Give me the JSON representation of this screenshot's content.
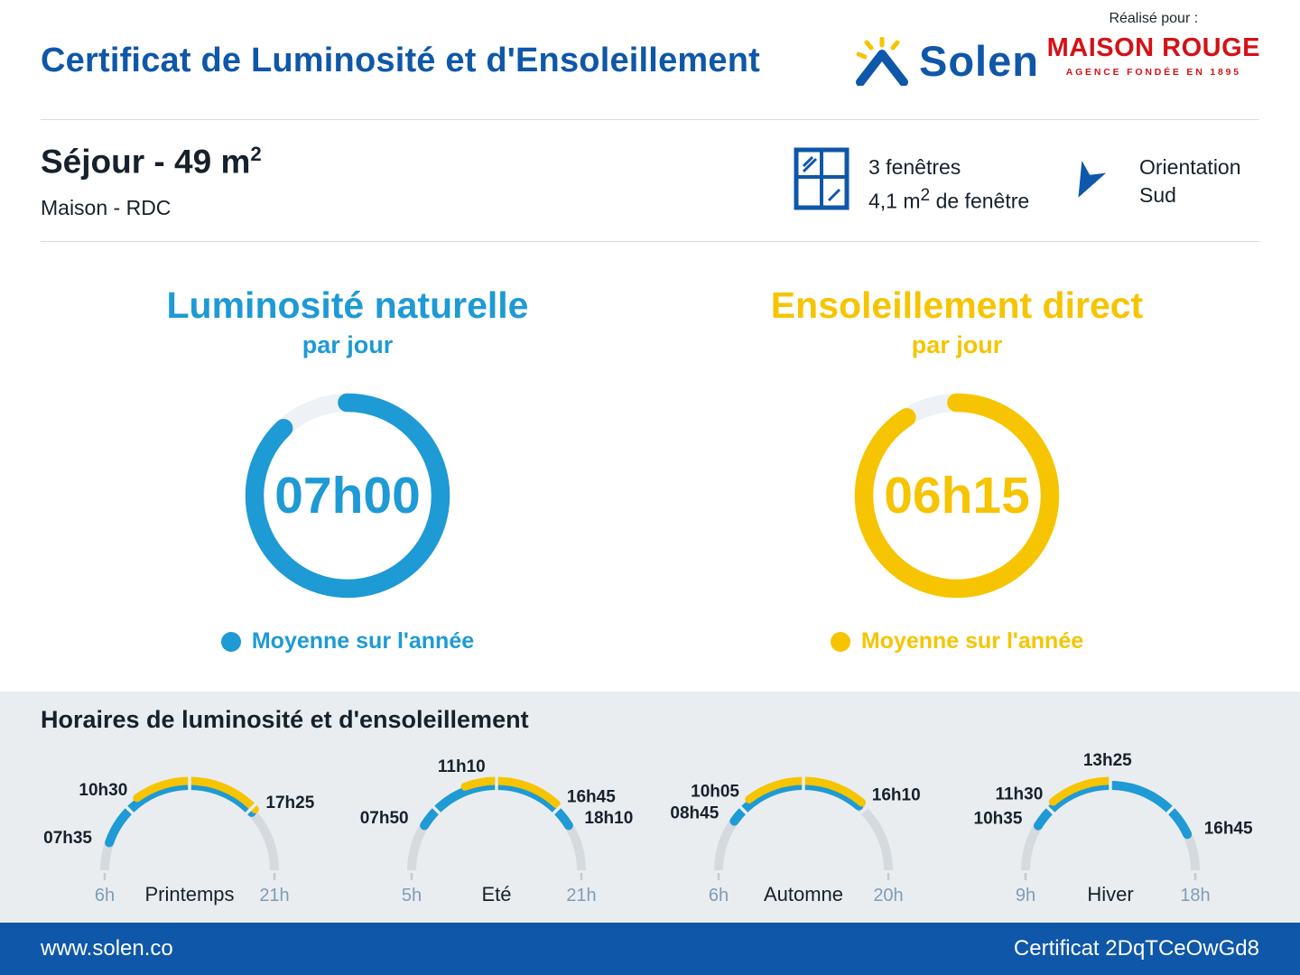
{
  "header": {
    "title": "Certificat de Luminosité et d'Ensoleillement",
    "brand_name": "Solen",
    "made_for_label": "Réalisé pour :",
    "agency_name": "MAISON ROUGE",
    "agency_tagline": "AGENCE FONDÉE EN 1895"
  },
  "room": {
    "title": "Séjour - 49 m",
    "title_sup": "2",
    "subtitle": "Maison - RDC",
    "windows_count": "3 fenêtres",
    "window_area_pre": "4,1 m",
    "window_area_sup": "2",
    "window_area_post": " de fenêtre",
    "orientation_label": "Orientation",
    "orientation_value": "Sud"
  },
  "gauges": {
    "luminosity": {
      "title": "Luminosité naturelle",
      "subtitle": "par jour",
      "value": "07h00",
      "legend": "Moyenne sur l'année",
      "dash": "88 12"
    },
    "sunlight": {
      "title": "Ensoleillement direct",
      "subtitle": "par jour",
      "value": "06h15",
      "legend": "Moyenne sur l'année",
      "dash": "91 9"
    }
  },
  "schedule": {
    "title": "Horaires de luminosité et d'ensoleillement"
  },
  "footer": {
    "website": "www.solen.co",
    "certificate_id": "Certificat 2DqTCeOwGd8"
  },
  "colors": {
    "brand_blue": "#0f57a8",
    "cyan": "#1e9ad5",
    "yellow": "#f6c400",
    "red": "#d31217",
    "dark_text": "#16212c",
    "panel_bg": "#e9edf0",
    "donut_track": "#eef1f5",
    "arc_track": "#d5dade",
    "scale_label": "#7e9cb8",
    "divider": "#dcdcdc"
  },
  "chart_data": [
    {
      "type": "donut-gauge",
      "title": "Luminosité naturelle par jour",
      "value_label": "07h00",
      "value_hours": 7.0,
      "fill_pct": 88,
      "legend": "Moyenne sur l'année",
      "color": "#1e9ad5"
    },
    {
      "type": "donut-gauge",
      "title": "Ensoleillement direct par jour",
      "value_label": "06h15",
      "value_hours": 6.25,
      "fill_pct": 91,
      "legend": "Moyenne sur l'année",
      "color": "#f6c400"
    },
    {
      "type": "seasonal-arc-gauges",
      "title": "Horaires de luminosité et d'ensoleillement",
      "series_legend": {
        "blue": "luminosité naturelle",
        "yellow": "ensoleillement direct"
      },
      "seasons": [
        {
          "name": "Printemps",
          "scale": {
            "min": 6,
            "max": 21,
            "min_label": "6h",
            "max_label": "21h"
          },
          "daylight": {
            "from": "07h35",
            "to": "17h25"
          },
          "sun": {
            "from": "10h30",
            "to": "17h25"
          }
        },
        {
          "name": "Eté",
          "scale": {
            "min": 5,
            "max": 21,
            "min_label": "5h",
            "max_label": "21h"
          },
          "daylight": {
            "from": "07h50",
            "to": "18h10"
          },
          "sun": {
            "from": "11h10",
            "to": "16h45"
          }
        },
        {
          "name": "Automne",
          "scale": {
            "min": 6,
            "max": 20,
            "min_label": "6h",
            "max_label": "20h"
          },
          "daylight": {
            "from": "08h45",
            "to": "16h10"
          },
          "sun": {
            "from": "10h05",
            "to": "16h10"
          }
        },
        {
          "name": "Hiver",
          "scale": {
            "min": 9,
            "max": 18,
            "min_label": "9h",
            "max_label": "18h"
          },
          "daylight": {
            "from": "10h35",
            "to": "16h45"
          },
          "sun": {
            "from": "11h30",
            "to": "13h25"
          }
        }
      ]
    }
  ]
}
